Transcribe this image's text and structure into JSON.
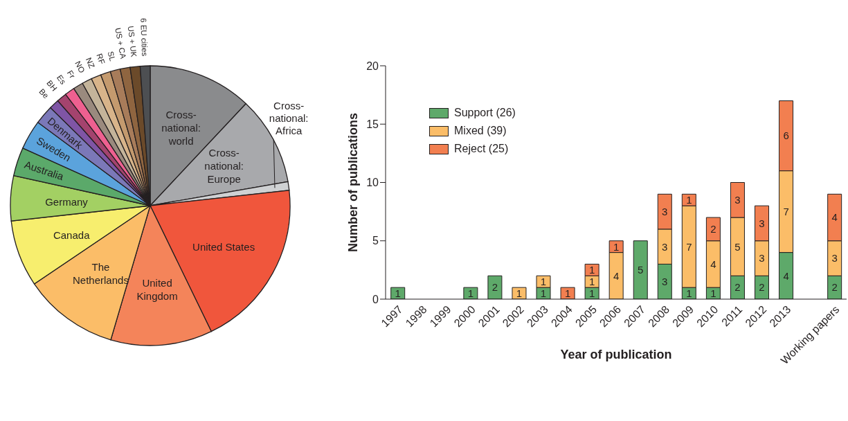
{
  "chart_data": [
    {
      "type": "pie",
      "categories": [
        "Cross-national: world",
        "Cross-national: Europe",
        "Cross-national: Africa",
        "United States",
        "United Kingdom",
        "The Netherlands",
        "Canada",
        "Germany",
        "Australia",
        "Sweden",
        "Denmark",
        "Be",
        "BH",
        "Es",
        "Fr",
        "NO",
        "NZ",
        "RF",
        "SL",
        "US + CA",
        "US + UK",
        "6 EU cities"
      ],
      "values": [
        12.0,
        10.25,
        1.0,
        19.55,
        11.75,
        11.0,
        7.7,
        5.2,
        3.3,
        3.4,
        2.2,
        1.15,
        1.15,
        1.15,
        1.15,
        1.15,
        1.15,
        1.15,
        1.15,
        1.15,
        1.15,
        1.15
      ],
      "colors": [
        "#8a8b8d",
        "#a8a9ac",
        "#cfd1d3",
        "#f0563c",
        "#f4845a",
        "#fbbd68",
        "#f7ee6e",
        "#a3d063",
        "#5ba96a",
        "#5ba3dc",
        "#7b78b8",
        "#7f55a5",
        "#a4436e",
        "#ee6090",
        "#9a8a7e",
        "#c4b49a",
        "#d8b48a",
        "#c49a6e",
        "#a87c5a",
        "#8f6540",
        "#6b4a2a",
        "#4d4f52"
      ]
    },
    {
      "type": "bar",
      "stacked": true,
      "xlabel": "Year of publication",
      "ylabel": "Number of publications",
      "categories": [
        "1997",
        "1998",
        "1999",
        "2000",
        "2001",
        "2002",
        "2003",
        "2004",
        "2005",
        "2006",
        "2007",
        "2008",
        "2009",
        "2010",
        "2011",
        "2012",
        "2013",
        null,
        "Working papers"
      ],
      "ylim": [
        0,
        20
      ],
      "yticks": [
        0,
        5,
        10,
        15,
        20
      ],
      "legend": "top left",
      "grid": false,
      "series": [
        {
          "name": "Support (26)",
          "color": "#5ea96a",
          "values": [
            1,
            0,
            0,
            1,
            2,
            null,
            1,
            null,
            1,
            null,
            5,
            3,
            1,
            1,
            2,
            2,
            4,
            null,
            2
          ],
          "value_labels": [
            "1",
            null,
            null,
            "1",
            "2",
            null,
            "1",
            null,
            "1",
            null,
            "5",
            "3",
            "1",
            "1",
            "2",
            "2",
            "4",
            null,
            "2"
          ]
        },
        {
          "name": "Mixed (39)",
          "color": "#fbbd68",
          "values": [
            null,
            null,
            null,
            null,
            null,
            1,
            1,
            null,
            1,
            4,
            null,
            3,
            7,
            4,
            5,
            3,
            7,
            null,
            3
          ],
          "value_labels": [
            null,
            null,
            null,
            null,
            null,
            "1",
            "1",
            null,
            "1",
            "4",
            null,
            "3",
            "7",
            "4",
            "5",
            "3",
            "7",
            null,
            "3"
          ]
        },
        {
          "name": "Reject (25)",
          "color": "#f27f50",
          "values": [
            null,
            null,
            null,
            null,
            null,
            null,
            null,
            1,
            1,
            1,
            null,
            3,
            1,
            2,
            3,
            3,
            6,
            null,
            4
          ],
          "value_labels": [
            null,
            null,
            null,
            null,
            null,
            null,
            null,
            "1",
            "1",
            "1",
            null,
            "3",
            "1",
            "2",
            "3",
            "3",
            "6",
            null,
            "4"
          ]
        }
      ]
    }
  ]
}
